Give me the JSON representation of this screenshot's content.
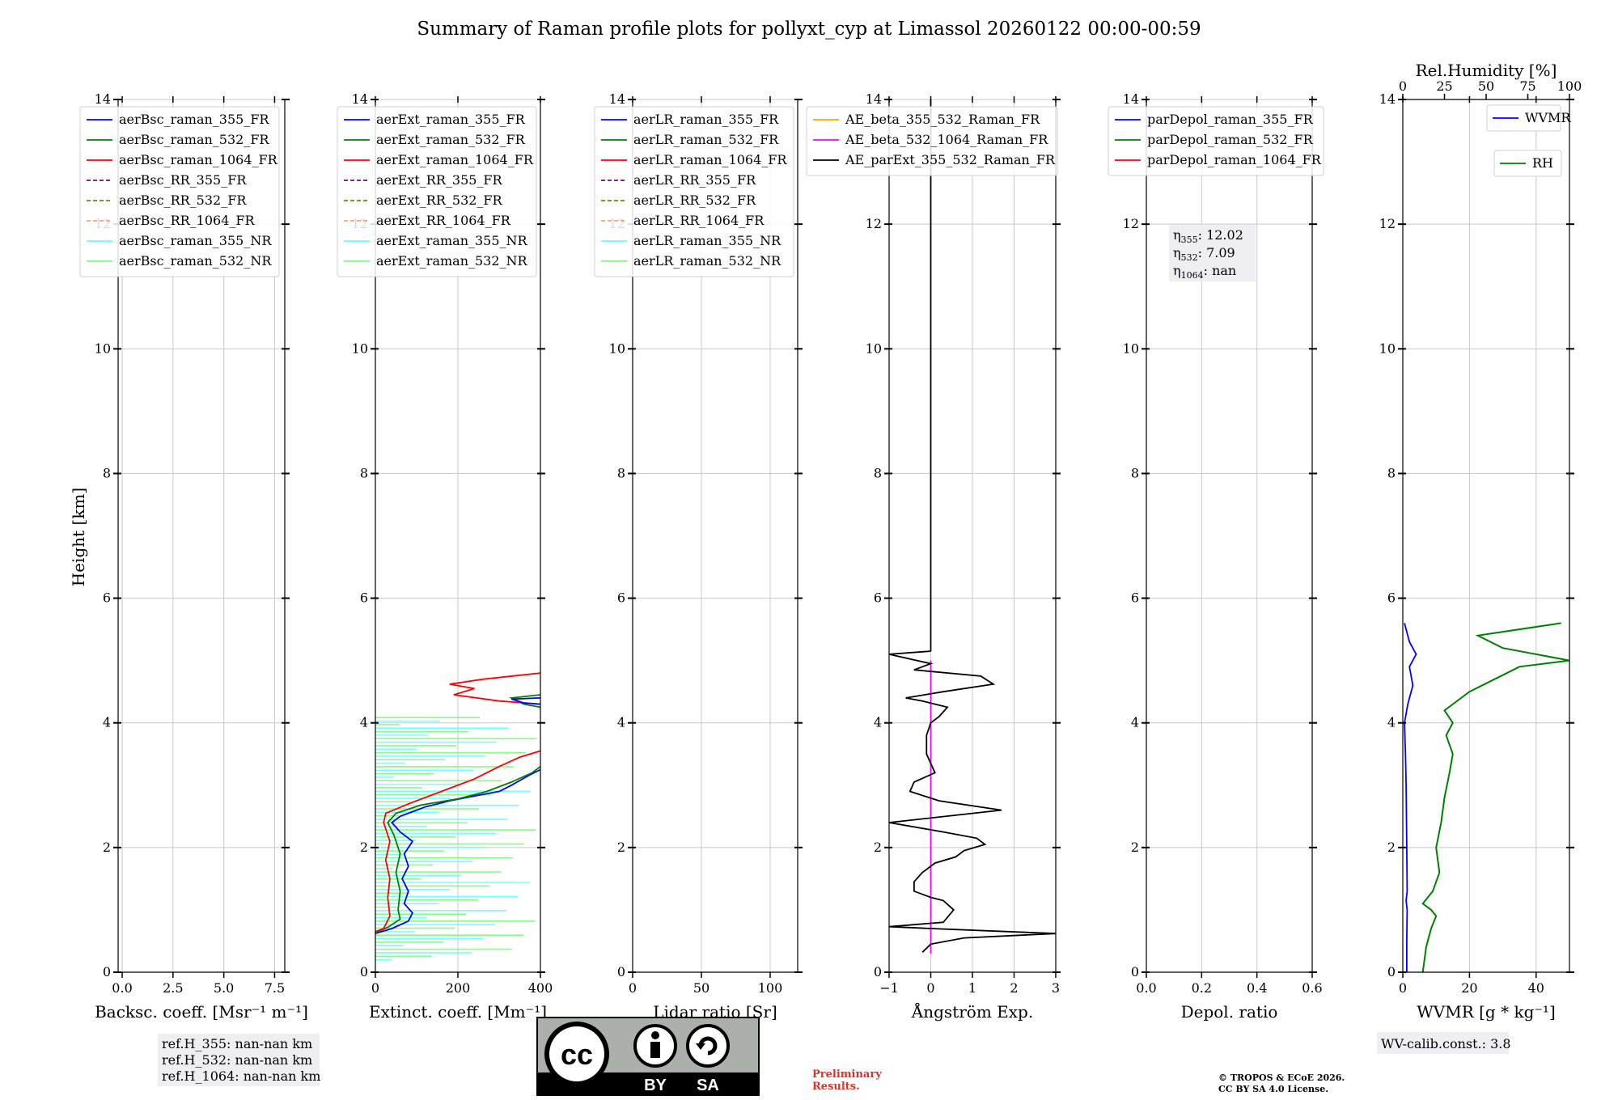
{
  "title": "Summary of Raman profile plots for pollyxt_cyp at Limassol 20260122 00:00-00:59",
  "y_axis_label": "Height [km]",
  "y_range": [
    0,
    14
  ],
  "y_ticks": [
    "0",
    "2",
    "4",
    "6",
    "8",
    "10",
    "12",
    "14"
  ],
  "panels": [
    {
      "id": "bsc",
      "xlabel": "Backsc. coeff. [Msr⁻¹ m⁻¹]",
      "xlim": [
        -0.2,
        8.0
      ],
      "xticks": [
        {
          "v": 0,
          "t": "0.0"
        },
        {
          "v": 2.5,
          "t": "2.5"
        },
        {
          "v": 5,
          "t": "5.0"
        },
        {
          "v": 7.5,
          "t": "7.5"
        }
      ],
      "legend": [
        {
          "label": "aerBsc_raman_355_FR",
          "color": "#0000ff",
          "dash": false
        },
        {
          "label": "aerBsc_raman_532_FR",
          "color": "#008000",
          "dash": false
        },
        {
          "label": "aerBsc_raman_1064_FR",
          "color": "#ff0000",
          "dash": false
        },
        {
          "label": "aerBsc_RR_355_FR",
          "color": "#800080",
          "dash": true
        },
        {
          "label": "aerBsc_RR_532_FR",
          "color": "#808000",
          "dash": true
        },
        {
          "label": "aerBsc_RR_1064_FR",
          "color": "#ffa07a",
          "dash": true
        },
        {
          "label": "aerBsc_raman_355_NR",
          "color": "#66ffff",
          "dash": false
        },
        {
          "label": "aerBsc_raman_532_NR",
          "color": "#7cfc7c",
          "dash": false
        }
      ]
    },
    {
      "id": "ext",
      "xlabel": "Extinct. coeff. [Mm⁻¹]",
      "xlim": [
        0,
        400
      ],
      "xticks": [
        {
          "v": 0,
          "t": "0"
        },
        {
          "v": 200,
          "t": "200"
        },
        {
          "v": 400,
          "t": "400"
        }
      ],
      "legend": [
        {
          "label": "aerExt_raman_355_FR",
          "color": "#0000ff",
          "dash": false
        },
        {
          "label": "aerExt_raman_532_FR",
          "color": "#008000",
          "dash": false
        },
        {
          "label": "aerExt_raman_1064_FR",
          "color": "#ff0000",
          "dash": false
        },
        {
          "label": "aerExt_RR_355_FR",
          "color": "#800080",
          "dash": true
        },
        {
          "label": "aerExt_RR_532_FR",
          "color": "#808000",
          "dash": true
        },
        {
          "label": "aerExt_RR_1064_FR",
          "color": "#ffa07a",
          "dash": true
        },
        {
          "label": "aerExt_raman_355_NR",
          "color": "#66ffff",
          "dash": false
        },
        {
          "label": "aerExt_raman_532_NR",
          "color": "#7cfc7c",
          "dash": false
        }
      ],
      "series": [
        {
          "name": "aerExt_raman_355_FR",
          "color": "#0000ff",
          "pts": [
            [
              0,
              0.62
            ],
            [
              40,
              0.7
            ],
            [
              80,
              0.82
            ],
            [
              90,
              0.95
            ],
            [
              70,
              1.1
            ],
            [
              80,
              1.3
            ],
            [
              65,
              1.5
            ],
            [
              80,
              1.7
            ],
            [
              70,
              1.9
            ],
            [
              90,
              2.1
            ],
            [
              60,
              2.25
            ],
            [
              40,
              2.4
            ],
            [
              60,
              2.5
            ],
            [
              120,
              2.65
            ],
            [
              180,
              2.75
            ],
            [
              260,
              2.85
            ],
            [
              300,
              2.9
            ],
            [
              330,
              3.0
            ],
            [
              370,
              3.15
            ],
            [
              400,
              3.25
            ]
          ]
        },
        {
          "name": "aerExt_raman_532_FR",
          "color": "#008000",
          "pts": [
            [
              0,
              0.63
            ],
            [
              30,
              0.72
            ],
            [
              60,
              0.85
            ],
            [
              55,
              1.0
            ],
            [
              60,
              1.3
            ],
            [
              50,
              1.6
            ],
            [
              60,
              1.9
            ],
            [
              45,
              2.2
            ],
            [
              30,
              2.4
            ],
            [
              50,
              2.55
            ],
            [
              110,
              2.68
            ],
            [
              200,
              2.78
            ],
            [
              270,
              2.9
            ],
            [
              330,
              3.05
            ],
            [
              380,
              3.2
            ],
            [
              400,
              3.3
            ]
          ]
        },
        {
          "name": "aerExt_raman_1064_FR",
          "color": "#ff0000",
          "pts": [
            [
              0,
              0.65
            ],
            [
              20,
              0.7
            ],
            [
              35,
              0.9
            ],
            [
              30,
              1.2
            ],
            [
              35,
              1.5
            ],
            [
              25,
              1.8
            ],
            [
              35,
              2.1
            ],
            [
              20,
              2.4
            ],
            [
              25,
              2.55
            ],
            [
              80,
              2.7
            ],
            [
              160,
              2.9
            ],
            [
              240,
              3.1
            ],
            [
              300,
              3.3
            ],
            [
              350,
              3.45
            ],
            [
              400,
              3.55
            ]
          ]
        },
        {
          "name": "aerExt_raman_1064_FR_upper",
          "color": "#ff0000",
          "pts": [
            [
              400,
              4.3
            ],
            [
              300,
              4.35
            ],
            [
              190,
              4.45
            ],
            [
              240,
              4.55
            ],
            [
              180,
              4.62
            ],
            [
              260,
              4.7
            ],
            [
              400,
              4.8
            ]
          ]
        },
        {
          "name": "aerExt_raman_532_FR_upper",
          "color": "#008000",
          "pts": [
            [
              400,
              4.25
            ],
            [
              360,
              4.3
            ],
            [
              330,
              4.4
            ],
            [
              400,
              4.45
            ]
          ]
        },
        {
          "name": "aerExt_raman_355_FR_upper",
          "color": "#0000ff",
          "pts": [
            [
              400,
              4.3
            ],
            [
              360,
              4.32
            ],
            [
              330,
              4.38
            ],
            [
              400,
              4.4
            ]
          ]
        }
      ]
    },
    {
      "id": "lr",
      "xlabel": "Lidar ratio [Sr]",
      "xlim": [
        0,
        120
      ],
      "xticks": [
        {
          "v": 0,
          "t": "0"
        },
        {
          "v": 50,
          "t": "50"
        },
        {
          "v": 100,
          "t": "100"
        }
      ],
      "legend": [
        {
          "label": "aerLR_raman_355_FR",
          "color": "#0000ff",
          "dash": false
        },
        {
          "label": "aerLR_raman_532_FR",
          "color": "#008000",
          "dash": false
        },
        {
          "label": "aerLR_raman_1064_FR",
          "color": "#ff0000",
          "dash": false
        },
        {
          "label": "aerLR_RR_355_FR",
          "color": "#800080",
          "dash": true
        },
        {
          "label": "aerLR_RR_532_FR",
          "color": "#808000",
          "dash": true
        },
        {
          "label": "aerLR_RR_1064_FR",
          "color": "#ffa07a",
          "dash": true
        },
        {
          "label": "aerLR_raman_355_NR",
          "color": "#66ffff",
          "dash": false
        },
        {
          "label": "aerLR_raman_532_NR",
          "color": "#7cfc7c",
          "dash": false
        }
      ]
    },
    {
      "id": "ae",
      "xlabel": "Ångström Exp.",
      "xlim": [
        -1,
        3
      ],
      "xticks": [
        {
          "v": -1,
          "t": "−1"
        },
        {
          "v": 0,
          "t": "0"
        },
        {
          "v": 1,
          "t": "1"
        },
        {
          "v": 2,
          "t": "2"
        },
        {
          "v": 3,
          "t": "3"
        }
      ],
      "legend": [
        {
          "label": "AE_beta_355_532_Raman_FR",
          "color": "#ffa500",
          "dash": false
        },
        {
          "label": "AE_beta_532_1064_Raman_FR",
          "color": "#ff00ff",
          "dash": false
        },
        {
          "label": "AE_parExt_355_532_Raman_FR",
          "color": "#000000",
          "dash": false
        }
      ],
      "series": [
        {
          "name": "AE_beta_532_1064_Raman_FR",
          "color": "#ff00ff",
          "pts": [
            [
              0,
              0.3
            ],
            [
              0,
              5.0
            ]
          ]
        },
        {
          "name": "AE_parExt_355_532_Raman_FR",
          "color": "#000000",
          "pts": [
            [
              -0.2,
              0.32
            ],
            [
              0,
              0.45
            ],
            [
              0.8,
              0.55
            ],
            [
              3,
              0.62
            ],
            [
              0,
              0.7
            ],
            [
              -1,
              0.73
            ],
            [
              0.3,
              0.8
            ],
            [
              0.55,
              1.0
            ],
            [
              0.3,
              1.15
            ],
            [
              0,
              1.2
            ],
            [
              -0.4,
              1.3
            ],
            [
              -0.4,
              1.45
            ],
            [
              -0.2,
              1.6
            ],
            [
              0.1,
              1.75
            ],
            [
              0.6,
              1.85
            ],
            [
              0.8,
              1.95
            ],
            [
              1.3,
              2.05
            ],
            [
              1.1,
              2.15
            ],
            [
              0.3,
              2.25
            ],
            [
              -1,
              2.4
            ],
            [
              1.7,
              2.6
            ],
            [
              0.2,
              2.75
            ],
            [
              -0.5,
              2.9
            ],
            [
              -0.4,
              3.05
            ],
            [
              0.1,
              3.2
            ],
            [
              -0.1,
              3.5
            ],
            [
              -0.1,
              3.8
            ],
            [
              0,
              4.0
            ],
            [
              0.2,
              4.1
            ],
            [
              0.4,
              4.25
            ],
            [
              -0.2,
              4.35
            ],
            [
              -0.6,
              4.4
            ],
            [
              0.3,
              4.5
            ],
            [
              1.5,
              4.62
            ],
            [
              1.2,
              4.75
            ],
            [
              -0.4,
              4.85
            ],
            [
              0,
              4.95
            ],
            [
              -1,
              5.1
            ],
            [
              0,
              5.15
            ]
          ]
        },
        {
          "name": "AE_parExt_355_532_Raman_FR_upper",
          "color": "#000000",
          "pts": [
            [
              0,
              5.15
            ],
            [
              0,
              14
            ]
          ]
        }
      ]
    },
    {
      "id": "depol",
      "xlabel": "Depol. ratio",
      "xlim": [
        0,
        0.6
      ],
      "xticks": [
        {
          "v": 0,
          "t": "0.0"
        },
        {
          "v": 0.2,
          "t": "0.2"
        },
        {
          "v": 0.4,
          "t": "0.4"
        },
        {
          "v": 0.6,
          "t": "0.6"
        }
      ],
      "legend": [
        {
          "label": "parDepol_raman_355_FR",
          "color": "#0000ff",
          "dash": false
        },
        {
          "label": "parDepol_raman_532_FR",
          "color": "#008000",
          "dash": false
        },
        {
          "label": "parDepol_raman_1064_FR",
          "color": "#ff0000",
          "dash": false
        }
      ]
    },
    {
      "id": "wv",
      "xlabel": "WVMR [g * kg⁻¹]",
      "xlim": [
        0,
        50
      ],
      "xticks": [
        {
          "v": 0,
          "t": "0"
        },
        {
          "v": 20,
          "t": "20"
        },
        {
          "v": 40,
          "t": "40"
        }
      ],
      "top_label": "Rel.Humidity [%]",
      "top_xlim": [
        0,
        100
      ],
      "top_ticks": [
        {
          "v": 0,
          "t": "0"
        },
        {
          "v": 25,
          "t": "25"
        },
        {
          "v": 50,
          "t": "50"
        },
        {
          "v": 75,
          "t": "75"
        },
        {
          "v": 100,
          "t": "100"
        }
      ],
      "legend_wvmr": {
        "label": "WVMR",
        "color": "#0000ff"
      },
      "legend_rh": {
        "label": "RH",
        "color": "#008000"
      },
      "series": [
        {
          "name": "WVMR",
          "axis": "bottom",
          "color": "#0000ff",
          "pts": [
            [
              1.2,
              0
            ],
            [
              1.2,
              0.5
            ],
            [
              1.3,
              1.0
            ],
            [
              1.0,
              1.15
            ],
            [
              1.3,
              1.3
            ],
            [
              1.2,
              2.0
            ],
            [
              1.0,
              3.0
            ],
            [
              0.8,
              3.5
            ],
            [
              0.5,
              4.0
            ],
            [
              1.5,
              4.3
            ],
            [
              3,
              4.6
            ],
            [
              2,
              4.9
            ],
            [
              4,
              5.1
            ],
            [
              2,
              5.3
            ],
            [
              1,
              5.5
            ],
            [
              0.5,
              5.6
            ]
          ]
        },
        {
          "name": "RH",
          "axis": "top",
          "color": "#008000",
          "pts": [
            [
              12,
              0
            ],
            [
              14,
              0.4
            ],
            [
              17,
              0.7
            ],
            [
              20,
              0.9
            ],
            [
              17,
              1.0
            ],
            [
              12,
              1.1
            ],
            [
              18,
              1.3
            ],
            [
              22,
              1.6
            ],
            [
              20,
              2.0
            ],
            [
              23,
              2.4
            ],
            [
              25,
              2.8
            ],
            [
              28,
              3.2
            ],
            [
              30,
              3.5
            ],
            [
              26,
              3.8
            ],
            [
              30,
              4.0
            ],
            [
              25,
              4.2
            ],
            [
              40,
              4.5
            ],
            [
              55,
              4.7
            ],
            [
              70,
              4.9
            ],
            [
              100,
              5.0
            ],
            [
              60,
              5.2
            ],
            [
              45,
              5.4
            ],
            [
              95,
              5.6
            ]
          ]
        }
      ]
    }
  ],
  "text_boxes": {
    "eta": {
      "l355": "η",
      "s355": "355",
      "v355": ": 12.02",
      "l532": "η",
      "s532": "532",
      "v532": ": 7.09",
      "l1064": "η",
      "s1064": "1064",
      "v1064": ": nan"
    },
    "refh": [
      "ref.H_355: nan-nan km",
      "ref.H_532: nan-nan km",
      "ref.H_1064: nan-nan km"
    ],
    "wv_calib": "WV-calib.const.: 3.8"
  },
  "license_badge": {
    "top": "cc",
    "left": "BY",
    "right": "SA"
  },
  "preliminary": [
    "Preliminary",
    "Results."
  ],
  "copyright": [
    "© TROPOS & ECoE 2026.",
    "CC BY SA 4.0 License."
  ],
  "colors": {
    "grid": "#c8c8c8",
    "box_bg": "#eeeef3"
  }
}
